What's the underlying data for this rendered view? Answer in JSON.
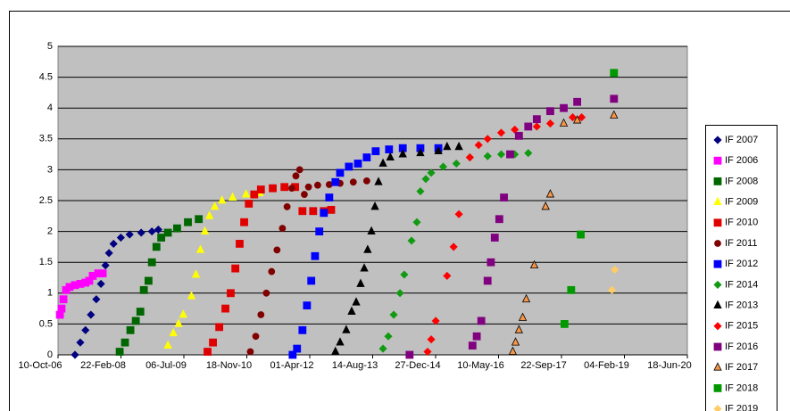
{
  "chart_data": {
    "type": "scatter",
    "xlim": [
      "2006-10-10",
      "2020-06-18"
    ],
    "xticks": [
      {
        "value": "2006-10-10",
        "label": "10-Oct-06"
      },
      {
        "value": "2008-02-22",
        "label": "22-Feb-08"
      },
      {
        "value": "2009-07-06",
        "label": "06-Jul-09"
      },
      {
        "value": "2010-11-18",
        "label": "18-Nov-10"
      },
      {
        "value": "2012-04-01",
        "label": "01-Apr-12"
      },
      {
        "value": "2013-08-14",
        "label": "14-Aug-13"
      },
      {
        "value": "2014-12-27",
        "label": "27-Dec-14"
      },
      {
        "value": "2016-05-10",
        "label": "10-May-16"
      },
      {
        "value": "2017-09-22",
        "label": "22-Sep-17"
      },
      {
        "value": "2019-02-04",
        "label": "04-Feb-19"
      },
      {
        "value": "2020-06-18",
        "label": "18-Jun-20"
      }
    ],
    "ylim": [
      0,
      5
    ],
    "yticks": [
      0,
      0.5,
      1,
      1.5,
      2,
      2.5,
      3,
      3.5,
      4,
      4.5,
      5
    ],
    "grid": true,
    "legend": "right",
    "series": [
      {
        "name": "IF 2007",
        "color": "#000080",
        "marker": "diamond",
        "x": [
          "2007-02-22",
          "2007-04-05",
          "2007-05-16",
          "2007-06-28",
          "2007-08-10",
          "2007-09-16",
          "2007-10-22",
          "2007-11-19",
          "2007-12-25",
          "2008-02-21",
          "2008-05-01",
          "2008-08-01",
          "2008-10-25",
          "2008-12-15"
        ],
        "values": [
          0,
          0.2,
          0.4,
          0.65,
          0.9,
          1.15,
          1.45,
          1.65,
          1.8,
          1.9,
          1.95,
          1.98,
          2.0,
          2.03
        ]
      },
      {
        "name": "IF 2006",
        "color": "#ff00ff",
        "marker": "square",
        "x": [
          "2006-10-25",
          "2006-11-07",
          "2006-11-22",
          "2006-12-13",
          "2007-01-10",
          "2007-02-22",
          "2007-04-05",
          "2007-05-16",
          "2007-06-15",
          "2007-07-13",
          "2007-08-25",
          "2007-09-30"
        ],
        "values": [
          0.65,
          0.75,
          0.9,
          1.05,
          1.1,
          1.13,
          1.15,
          1.17,
          1.2,
          1.28,
          1.32,
          1.32
        ]
      },
      {
        "name": "IF 2008",
        "color": "#006600",
        "marker": "square",
        "x": [
          "2008-02-12",
          "2008-03-25",
          "2008-05-07",
          "2008-06-19",
          "2008-07-25",
          "2008-08-22",
          "2008-09-28",
          "2008-10-25",
          "2008-11-30",
          "2009-01-07",
          "2009-03-01",
          "2009-05-13",
          "2009-08-07",
          "2009-11-01"
        ],
        "values": [
          0.05,
          0.2,
          0.4,
          0.55,
          0.7,
          1.05,
          1.2,
          1.5,
          1.75,
          1.9,
          1.98,
          2.05,
          2.15,
          2.2
        ]
      },
      {
        "name": "IF 2009",
        "color": "#ffff00",
        "marker": "triangle",
        "x": [
          "2009-03-01",
          "2009-04-13",
          "2009-05-25",
          "2009-07-01",
          "2009-09-04",
          "2009-10-10",
          "2009-11-14",
          "2009-12-20",
          "2010-01-25",
          "2010-03-08",
          "2010-05-05",
          "2010-07-28",
          "2010-11-12",
          "2011-02-28"
        ],
        "values": [
          0.15,
          0.35,
          0.5,
          0.65,
          0.95,
          1.3,
          1.7,
          2.0,
          2.25,
          2.4,
          2.5,
          2.55,
          2.6,
          2.62
        ]
      },
      {
        "name": "IF 2010",
        "color": "#e00000",
        "marker": "square",
        "x": [
          "2010-01-10",
          "2010-02-22",
          "2010-04-13",
          "2010-06-01",
          "2010-07-13",
          "2010-08-19",
          "2010-09-22",
          "2010-10-28",
          "2010-12-04",
          "2011-01-16",
          "2011-03-10",
          "2011-06-12",
          "2011-09-13",
          "2011-12-07",
          "2012-02-03",
          "2012-04-28",
          "2012-07-22",
          "2012-09-18"
        ],
        "values": [
          0.05,
          0.2,
          0.45,
          0.75,
          1.0,
          1.4,
          1.8,
          2.15,
          2.45,
          2.6,
          2.68,
          2.7,
          2.72,
          2.72,
          2.33,
          2.33,
          2.33,
          2.35
        ]
      },
      {
        "name": "IF 2011",
        "color": "#800000",
        "marker": "circle",
        "x": [
          "2010-12-16",
          "2011-01-28",
          "2011-03-10",
          "2011-04-22",
          "2011-06-03",
          "2011-07-16",
          "2011-08-28",
          "2011-10-04",
          "2011-11-10",
          "2011-12-13",
          "2012-01-12",
          "2012-02-18",
          "2012-03-22",
          "2012-06-03",
          "2012-09-03",
          "2012-11-28",
          "2013-03-13",
          "2013-06-28"
        ],
        "values": [
          0.05,
          0.3,
          0.65,
          1.0,
          1.35,
          1.7,
          2.05,
          2.4,
          2.7,
          2.9,
          3.0,
          2.6,
          2.72,
          2.75,
          2.76,
          2.78,
          2.8,
          2.82
        ]
      },
      {
        "name": "IF 2012",
        "color": "#0000ff",
        "marker": "square",
        "x": [
          "2011-11-17",
          "2011-12-22",
          "2012-02-03",
          "2012-03-10",
          "2012-04-13",
          "2012-05-13",
          "2012-06-16",
          "2012-07-22",
          "2012-09-03",
          "2012-10-22",
          "2012-11-28",
          "2013-02-06",
          "2013-04-19",
          "2013-06-28",
          "2013-09-07",
          "2013-12-22",
          "2014-04-10",
          "2014-08-28",
          "2015-01-18"
        ],
        "values": [
          0,
          0.1,
          0.4,
          0.8,
          1.2,
          1.6,
          2.0,
          2.3,
          2.55,
          2.8,
          2.95,
          3.05,
          3.1,
          3.2,
          3.3,
          3.33,
          3.35,
          3.35,
          3.35
        ]
      },
      {
        "name": "IF 2014",
        "color": "#139a13",
        "marker": "diamond",
        "x": [
          "2013-11-04",
          "2013-12-16",
          "2014-01-28",
          "2014-03-19",
          "2014-04-22",
          "2014-06-19",
          "2014-07-31",
          "2014-08-28",
          "2014-10-10",
          "2014-11-22",
          "2015-02-25",
          "2015-06-10",
          "2015-09-25",
          "2016-02-13",
          "2016-05-31",
          "2016-09-16",
          "2017-01-01"
        ],
        "values": [
          0.1,
          0.3,
          0.65,
          1.0,
          1.3,
          1.85,
          2.15,
          2.65,
          2.85,
          2.95,
          3.05,
          3.1,
          3.2,
          3.22,
          3.25,
          3.25,
          3.27
        ]
      },
      {
        "name": "IF 2013",
        "color": "#000000",
        "marker": "triangle",
        "x": [
          "2012-10-22",
          "2012-11-28",
          "2013-01-16",
          "2013-02-28",
          "2013-04-05",
          "2013-05-10",
          "2013-06-08",
          "2013-07-05",
          "2013-08-04",
          "2013-09-01",
          "2013-09-29",
          "2013-11-04",
          "2014-01-01",
          "2014-04-10",
          "2014-08-28",
          "2015-01-18",
          "2015-03-28",
          "2015-06-30"
        ],
        "values": [
          0.05,
          0.2,
          0.4,
          0.7,
          0.85,
          1.15,
          1.4,
          1.7,
          2.0,
          2.4,
          2.8,
          3.1,
          3.2,
          3.25,
          3.27,
          3.3,
          3.37,
          3.37
        ]
      },
      {
        "name": "IF 2015",
        "color": "#ff0000",
        "marker": "diamond",
        "x": [
          "2014-10-24",
          "2014-11-22",
          "2014-12-28",
          "2015-03-28",
          "2015-05-19",
          "2015-06-30",
          "2015-09-25",
          "2015-12-04",
          "2016-02-13",
          "2016-05-31",
          "2016-09-16",
          "2017-03-10",
          "2017-06-25",
          "2017-12-20",
          "2018-03-01"
        ],
        "values": [
          0.05,
          0.25,
          0.55,
          1.28,
          1.75,
          2.28,
          3.2,
          3.4,
          3.5,
          3.6,
          3.65,
          3.7,
          3.75,
          3.85,
          3.85
        ]
      },
      {
        "name": "IF 2016",
        "color": "#800080",
        "marker": "square",
        "x": [
          "2014-06-03",
          "2015-10-16",
          "2015-11-19",
          "2015-12-25",
          "2016-02-13",
          "2016-03-10",
          "2016-04-10",
          "2016-05-16",
          "2016-06-22",
          "2016-08-10",
          "2016-10-19",
          "2017-01-01",
          "2017-03-10",
          "2017-06-25",
          "2017-10-10",
          "2018-01-25",
          "2018-11-13"
        ],
        "values": [
          0,
          0.15,
          0.3,
          0.55,
          1.2,
          1.5,
          1.9,
          2.2,
          2.55,
          3.25,
          3.55,
          3.7,
          3.82,
          3.95,
          4.0,
          4.1,
          4.15
        ]
      },
      {
        "name": "IF 2017",
        "color": "#f79646",
        "marker": "triangle",
        "x": [
          "2016-08-31",
          "2016-09-22",
          "2016-10-19",
          "2016-11-18",
          "2016-12-16",
          "2017-02-18",
          "2017-05-19",
          "2017-06-25",
          "2017-10-10",
          "2018-01-25",
          "2018-11-13"
        ],
        "values": [
          0.05,
          0.2,
          0.4,
          0.6,
          0.9,
          1.45,
          2.4,
          2.6,
          3.75,
          3.8,
          3.88
        ]
      },
      {
        "name": "IF 2018",
        "color": "#009900",
        "marker": "square",
        "x": [
          "2017-10-16",
          "2017-12-08",
          "2018-02-22",
          "2018-11-13"
        ],
        "values": [
          0.5,
          1.05,
          1.95,
          4.57
        ]
      },
      {
        "name": "IF 2019",
        "color": "#ffcc66",
        "marker": "diamond",
        "x": [
          "2018-10-28",
          "2018-11-19"
        ],
        "values": [
          1.05,
          1.38
        ]
      }
    ]
  }
}
